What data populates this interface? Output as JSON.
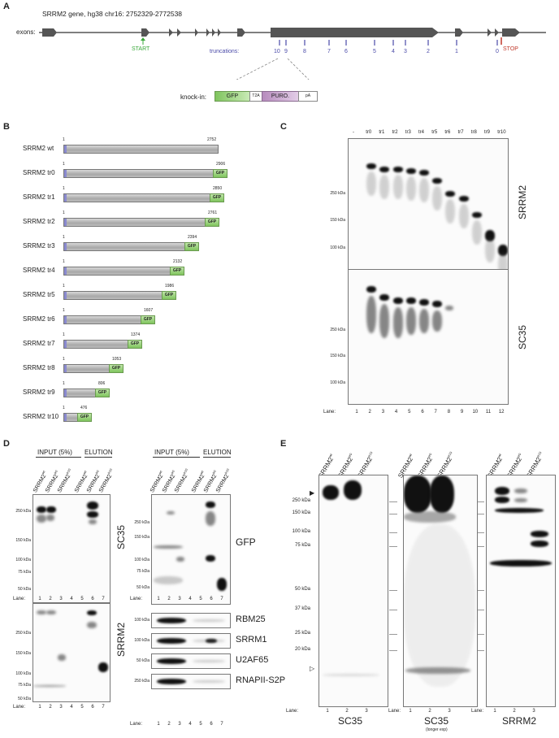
{
  "panelA": {
    "letter": "A",
    "title": "SRRM2 gene, hg38 chr16: 2752329-2772538",
    "exons_label": "exons:",
    "start_label": "START",
    "stop_label": "STOP",
    "truncations_label": "truncations:",
    "truncation_numbers": [
      "10",
      "9",
      "8",
      "7",
      "6",
      "5",
      "4",
      "3",
      "2",
      "1",
      "0"
    ],
    "knockin_label": "knock-in:",
    "cassette": {
      "gfp": "GFP",
      "t2a": "T2A",
      "puro": "PURO.",
      "pa": "pA"
    },
    "colors": {
      "start": "#3aa83a",
      "stop": "#c0392b",
      "truncation": "#4a4aa8"
    }
  },
  "panelB": {
    "letter": "B",
    "constructs": [
      {
        "name": "SRRM2 wt",
        "length": "2752",
        "gfp": false
      },
      {
        "name": "SRRM2 tr0",
        "length": "2906",
        "gfp": true
      },
      {
        "name": "SRRM2 tr1",
        "length": "2850",
        "gfp": true
      },
      {
        "name": "SRRM2 tr2",
        "length": "2761",
        "gfp": true
      },
      {
        "name": "SRRM2 tr3",
        "length": "2394",
        "gfp": true
      },
      {
        "name": "SRRM2 tr4",
        "length": "2132",
        "gfp": true
      },
      {
        "name": "SRRM2 tr5",
        "length": "1986",
        "gfp": true
      },
      {
        "name": "SRRM2 tr6",
        "length": "1607",
        "gfp": true
      },
      {
        "name": "SRRM2 tr7",
        "length": "1374",
        "gfp": true
      },
      {
        "name": "SRRM2 tr8",
        "length": "1053",
        "gfp": true
      },
      {
        "name": "SRRM2 tr9",
        "length": "806",
        "gfp": true
      },
      {
        "name": "SRRM2 tr10",
        "length": "476",
        "gfp": true
      }
    ],
    "start_number": "1",
    "gfp_label": "GFP"
  },
  "panelC": {
    "letter": "C",
    "lanes_top": [
      "-",
      "tr0",
      "tr1",
      "tr2",
      "tr3",
      "tr4",
      "tr5",
      "tr6",
      "tr7",
      "tr8",
      "tr9",
      "tr10"
    ],
    "lane_numbers": [
      "1",
      "2",
      "3",
      "4",
      "5",
      "6",
      "7",
      "8",
      "9",
      "10",
      "11",
      "12"
    ],
    "lane_prefix": "Lane:",
    "markers": [
      "250 kDa",
      "150 kDa",
      "100 kDa"
    ],
    "blot_labels": [
      "SRRM2",
      "SC35"
    ]
  },
  "panelD": {
    "letter": "D",
    "input_label": "INPUT (5%)",
    "elution_label": "ELUTION",
    "sample_base": "SRRM2",
    "sample_sup": [
      "wt",
      "tr0",
      "tr10"
    ],
    "lane_prefix": "Lane:",
    "lane_numbers": [
      "1",
      "2",
      "3",
      "4",
      "5",
      "6",
      "7"
    ],
    "markers_big": [
      "250 kDa",
      "150 kDa",
      "100 kDa",
      "75 kDa",
      "50 kDa"
    ],
    "left_blots": [
      "SC35",
      "SRRM2"
    ],
    "right_blot": "GFP",
    "small_blots": [
      {
        "name": "RBM25",
        "marker": "100 kDa"
      },
      {
        "name": "SRRM1",
        "marker": "100 kDa"
      },
      {
        "name": "U2AF65",
        "marker": "50 kDa"
      },
      {
        "name": "RNAPII-S2P",
        "marker": "250 kDa"
      }
    ]
  },
  "panelE": {
    "letter": "E",
    "sample_base": "SRRM2",
    "sample_sup": [
      "wt",
      "tr0",
      "tr10"
    ],
    "markers": [
      "250 kDa",
      "150 kDa",
      "100 kDa",
      "75 kDa",
      "50 kDa",
      "37 kDa",
      "25 kDa",
      "20 kDa"
    ],
    "lane_prefix": "Lane:",
    "lane_numbers": [
      "1",
      "2",
      "3"
    ],
    "blot_labels": [
      "SC35",
      "SC35",
      "SRRM2"
    ],
    "longer_exp": "(longer exp)"
  }
}
